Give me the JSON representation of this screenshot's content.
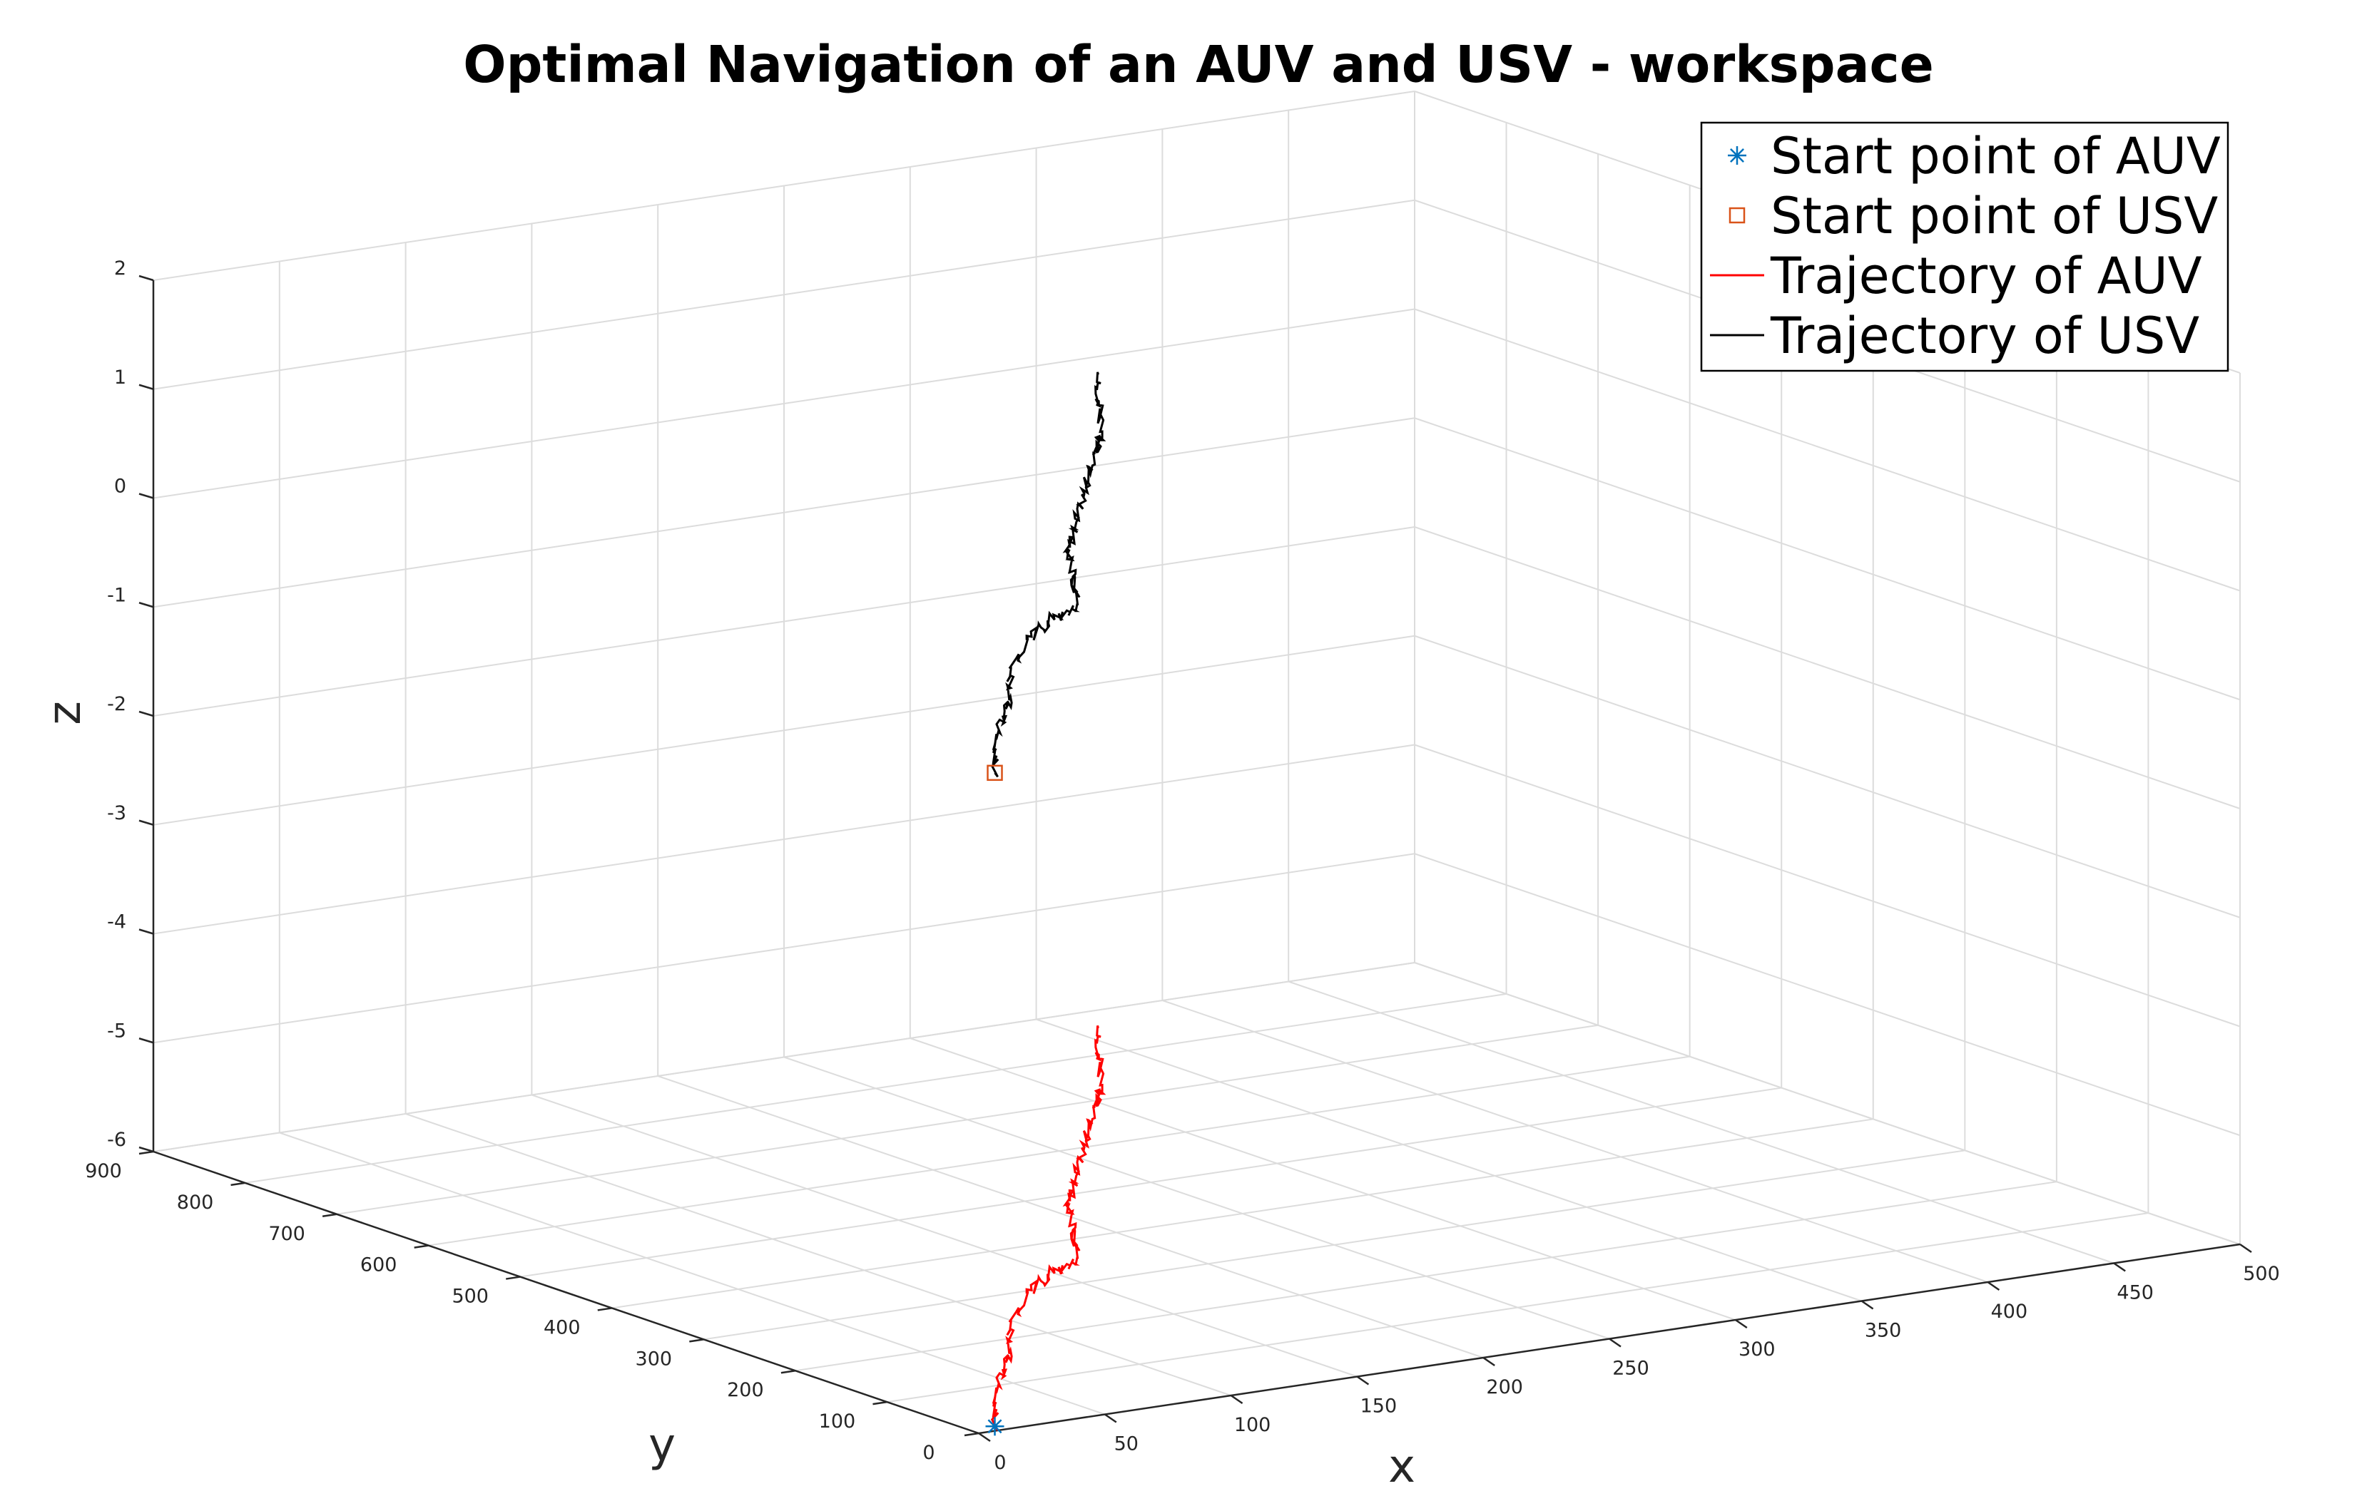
{
  "chart_data": {
    "type": "line3d",
    "title": "Optimal Navigation of an AUV and USV - workspace",
    "xlabel": "x",
    "ylabel": "y",
    "zlabel": "z",
    "xlim": [
      0,
      500
    ],
    "ylim": [
      0,
      900
    ],
    "zlim": [
      -6,
      2
    ],
    "xticks": [
      "0",
      "50",
      "100",
      "150",
      "200",
      "250",
      "300",
      "350",
      "400",
      "450",
      "500"
    ],
    "yticks": [
      "0",
      "100",
      "200",
      "300",
      "400",
      "500",
      "600",
      "700",
      "800",
      "900"
    ],
    "zticks": [
      "-6",
      "-5",
      "-4",
      "-3",
      "-2",
      "-1",
      "0",
      "1",
      "2"
    ],
    "grid": true,
    "legend_position": "top-right",
    "markers": [
      {
        "name": "Start point of AUV",
        "x": 10,
        "y": 10,
        "z": -6,
        "symbol": "asterisk",
        "color": "#0072BD"
      },
      {
        "name": "Start point of USV",
        "x": 10,
        "y": 10,
        "z": 0,
        "symbol": "square",
        "color": "#D95319"
      }
    ],
    "series": [
      {
        "name": "Trajectory of AUV",
        "color": "#ff0000",
        "z": -6,
        "x": [
          10,
          40,
          70,
          100,
          130,
          150,
          170,
          190,
          210,
          235,
          260,
          285,
          310,
          335,
          360
        ],
        "y": [
          10,
          90,
          160,
          240,
          300,
          330,
          360,
          420,
          480,
          540,
          600,
          660,
          720,
          790,
          860
        ]
      },
      {
        "name": "Trajectory of USV",
        "color": "#000000",
        "z": 0,
        "x": [
          10,
          40,
          70,
          100,
          130,
          150,
          170,
          190,
          210,
          235,
          260,
          285,
          310,
          335,
          360
        ],
        "y": [
          10,
          90,
          160,
          240,
          300,
          330,
          360,
          420,
          480,
          540,
          600,
          660,
          720,
          790,
          860
        ]
      }
    ]
  }
}
